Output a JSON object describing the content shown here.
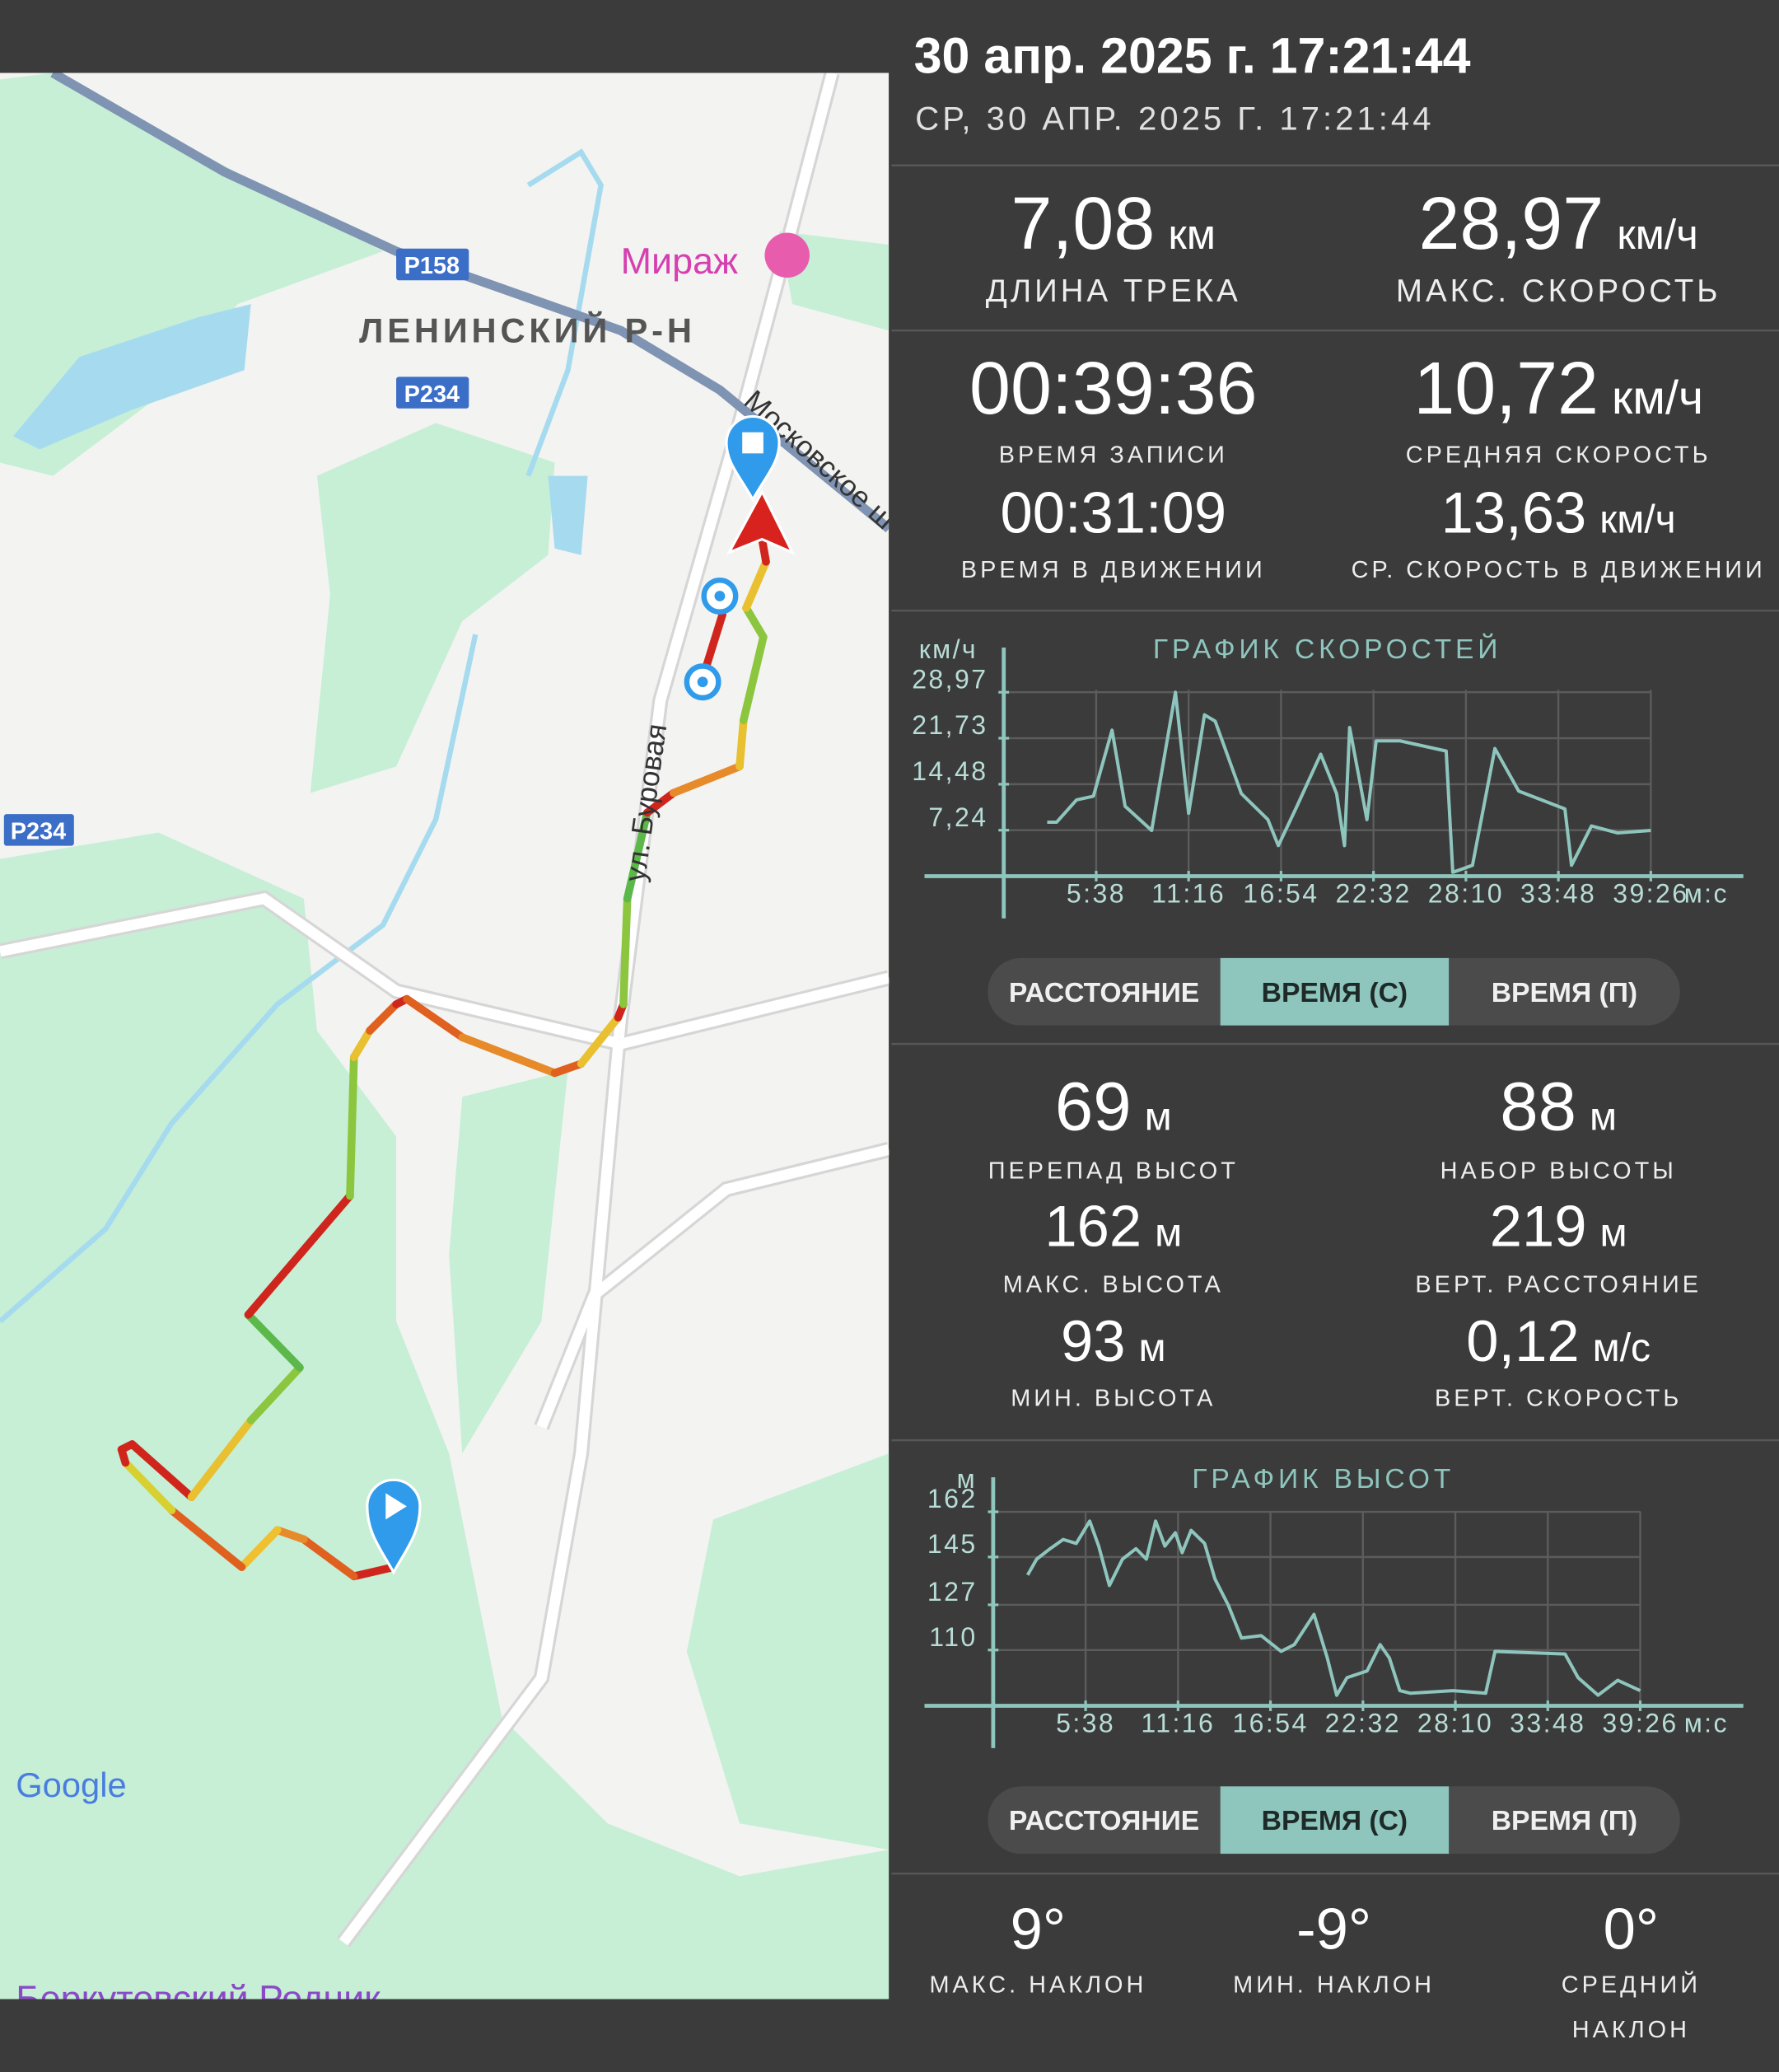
{
  "header": {
    "title": "30 апр. 2025 г. 17:21:44",
    "subtitle": "СР, 30 АПР. 2025 Г. 17:21:44"
  },
  "map": {
    "poi": "Мираж",
    "district": "ЛЕНИНСКИЙ Р-Н",
    "roads": [
      "Р158",
      "Р234",
      "Р234"
    ],
    "streets": [
      "ул. Буровая",
      "Московское ш"
    ],
    "attribution": "Google",
    "bottom_poi": "Беркутовский Родник"
  },
  "track_stats": [
    {
      "value": "7,08",
      "unit": "км",
      "label": "ДЛИНА ТРЕКА"
    },
    {
      "value": "28,97",
      "unit": "км/ч",
      "label": "МАКС. СКОРОСТЬ"
    },
    {
      "value": "00:39:36",
      "label": "ВРЕМЯ ЗАПИСИ"
    },
    {
      "value": "10,72",
      "unit": "км/ч",
      "label": "СРЕДНЯЯ СКОРОСТЬ"
    },
    {
      "value": "00:31:09",
      "label": "ВРЕМЯ В ДВИЖЕНИИ"
    },
    {
      "value": "13,63",
      "unit": "км/ч",
      "label": "СР. СКОРОСТЬ В ДВИЖЕНИИ"
    }
  ],
  "chart_data": [
    {
      "type": "line",
      "title": "ГРАФИК СКОРОСТЕЙ",
      "y_label": "км/ч",
      "x_label": "м:с",
      "color": "#8ec5bd",
      "grid": true,
      "x": [
        159,
        193,
        266,
        328,
        396,
        444,
        541,
        628,
        676,
        734,
        773,
        869,
        966,
        1004,
        1072,
        1159,
        1217,
        1246,
        1265,
        1328,
        1362,
        1449,
        1618,
        1642,
        1714,
        1796,
        1883,
        2052,
        2076,
        2149,
        2245,
        2366
      ],
      "values": [
        8.5,
        8.5,
        12.0,
        12.6,
        23.0,
        11.0,
        7.2,
        28.97,
        9.9,
        25.4,
        24.4,
        13.0,
        8.9,
        4.8,
        11.0,
        19.2,
        13.0,
        4.8,
        23.4,
        8.9,
        21.3,
        21.3,
        19.7,
        0.6,
        1.7,
        20.1,
        13.4,
        10.6,
        1.7,
        7.9,
        6.8,
        7.2
      ],
      "xlim": [
        0,
        2376
      ],
      "ylim": [
        0,
        36
      ],
      "xticks": [
        {
          "value": 338,
          "label": "5:38"
        },
        {
          "value": 676,
          "label": "11:16"
        },
        {
          "value": 1014,
          "label": "16:54"
        },
        {
          "value": 1352,
          "label": "22:32"
        },
        {
          "value": 1690,
          "label": "28:10"
        },
        {
          "value": 2028,
          "label": "33:48"
        },
        {
          "value": 2366,
          "label": "39:26"
        }
      ],
      "yticks": [
        {
          "value": 28.97,
          "label": "28,97"
        },
        {
          "value": 21.73,
          "label": "21,73"
        },
        {
          "value": 14.48,
          "label": "14,48"
        },
        {
          "value": 7.24,
          "label": "7,24"
        }
      ]
    },
    {
      "type": "line",
      "title": "ГРАФИК ВЫСОТ",
      "y_label": "м",
      "x_label": "м:с",
      "color": "#8ec5bd",
      "grid": true,
      "x": [
        126,
        159,
        208,
        256,
        304,
        353,
        386,
        425,
        473,
        522,
        560,
        594,
        628,
        666,
        691,
        724,
        773,
        811,
        860,
        908,
        980,
        1053,
        1101,
        1173,
        1222,
        1256,
        1294,
        1367,
        1415,
        1449,
        1487,
        1526,
        1681,
        1801,
        1835,
        2091,
        2139,
        2212,
        2284,
        2366
      ],
      "values": [
        138.2,
        144.2,
        148.1,
        151.6,
        150.1,
        158.5,
        149.1,
        134.3,
        144.2,
        148.1,
        144.2,
        158.5,
        149.1,
        154.1,
        146.6,
        155.0,
        150.1,
        136.7,
        126.8,
        114.5,
        115.4,
        109.5,
        112.0,
        123.4,
        107.0,
        93,
        99.6,
        102.1,
        112.0,
        107.0,
        94.7,
        93.7,
        94.7,
        93.7,
        109.5,
        108.5,
        99.6,
        93,
        98.6,
        94.7
      ],
      "xlim": [
        0,
        2376
      ],
      "ylim": [
        89,
        175
      ],
      "xticks": [
        {
          "value": 338,
          "label": "5:38"
        },
        {
          "value": 676,
          "label": "11:16"
        },
        {
          "value": 1014,
          "label": "16:54"
        },
        {
          "value": 1352,
          "label": "22:32"
        },
        {
          "value": 1690,
          "label": "28:10"
        },
        {
          "value": 2028,
          "label": "33:48"
        },
        {
          "value": 2366,
          "label": "39:26"
        }
      ],
      "yticks": [
        162,
        145,
        127,
        110
      ]
    }
  ],
  "tabs": {
    "items": [
      "РАССТОЯНИЕ",
      "ВРЕМЯ (С)",
      "ВРЕМЯ (П)"
    ],
    "selected": 1
  },
  "altitude_stats": [
    {
      "value": "69",
      "unit": "м",
      "label": "ПЕРЕПАД ВЫСОТ"
    },
    {
      "value": "88",
      "unit": "м",
      "label": "НАБОР ВЫСОТЫ"
    },
    {
      "value": "162",
      "unit": "м",
      "label": "МАКС. ВЫСОТА"
    },
    {
      "value": "219",
      "unit": "м",
      "label": "ВЕРТ. РАССТОЯНИЕ"
    },
    {
      "value": "93",
      "unit": "м",
      "label": "МИН. ВЫСОТА"
    },
    {
      "value": "0,12",
      "unit": "м/с",
      "label": "ВЕРТ. СКОРОСТЬ"
    }
  ],
  "slope_stats": [
    {
      "value": "9°",
      "label": [
        "МАКС. НАКЛОН"
      ]
    },
    {
      "value": "-9°",
      "label": [
        "МИН. НАКЛОН"
      ]
    },
    {
      "value": "0°",
      "label": [
        "СРЕДНИЙ",
        "НАКЛОН"
      ]
    }
  ]
}
